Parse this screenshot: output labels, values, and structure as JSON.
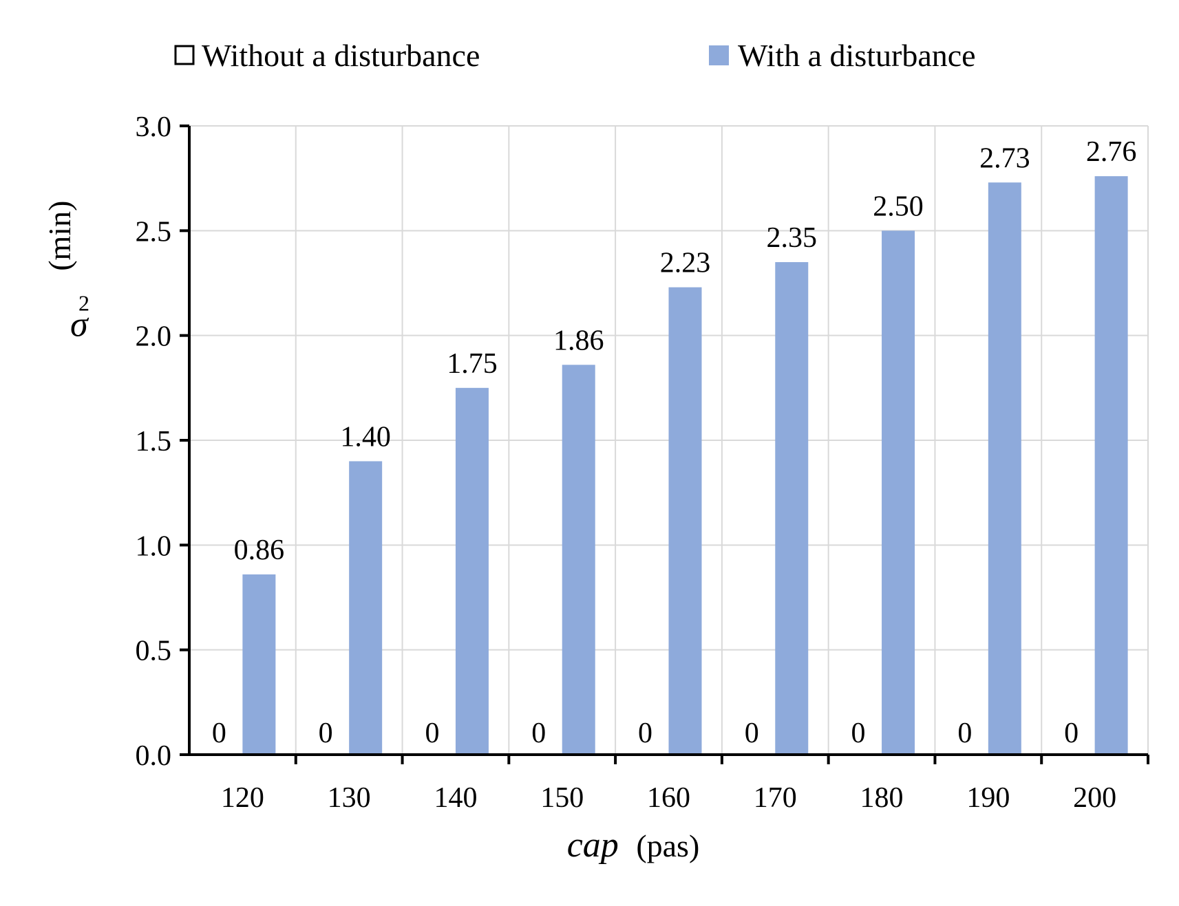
{
  "chart_data": {
    "type": "bar",
    "categories": [
      "120",
      "130",
      "140",
      "150",
      "160",
      "170",
      "180",
      "190",
      "200"
    ],
    "series": [
      {
        "name": "Without a disturbance",
        "values": [
          0,
          0,
          0,
          0,
          0,
          0,
          0,
          0,
          0
        ],
        "labels": [
          "0",
          "0",
          "0",
          "0",
          "0",
          "0",
          "0",
          "0",
          "0"
        ],
        "color": "#ffffff"
      },
      {
        "name": "With a disturbance",
        "values": [
          0.86,
          1.4,
          1.75,
          1.86,
          2.23,
          2.35,
          2.5,
          2.73,
          2.76
        ],
        "labels": [
          "0.86",
          "1.40",
          "1.75",
          "1.86",
          "2.23",
          "2.35",
          "2.50",
          "2.73",
          "2.76"
        ],
        "color": "#8eaadb"
      }
    ],
    "ylim": [
      0,
      3.0
    ],
    "yticks": [
      "0.0",
      "0.5",
      "1.0",
      "1.5",
      "2.0",
      "2.5",
      "3.0"
    ],
    "ylabel": {
      "symbol": "σ",
      "subscript": "2",
      "unit": "(min)"
    },
    "xlabel": {
      "symbol": "cap",
      "unit": "(pas)"
    },
    "grid": true,
    "legend_position": "top"
  }
}
